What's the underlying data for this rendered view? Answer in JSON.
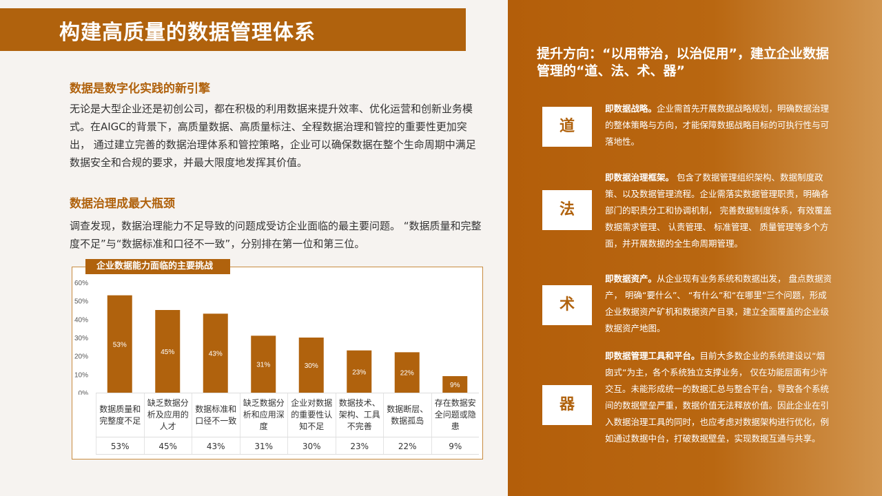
{
  "title": "构建高质量的数据管理体系",
  "section1": {
    "heading": "数据是数字化实践的新引擎",
    "body": "无论是大型企业还是初创公司，都在积极的利用数据来提升效率、优化运营和创新业务模式。在AIGC的背景下，高质量数据、高质量标注、全程数据治理和管控的重要性更加突出， 通过建立完善的数据治理体系和管控策略，企业可以确保数据在整个生命周期中满足数据安全和合规的要求，并最大限度地发挥其价值。"
  },
  "section2": {
    "heading": "数据治理成最大瓶颈",
    "body": "调查发现，数据治理能力不足导致的问题成受访企业面临的最主要问题。  “数据质量和完整度不足”与“数据标准和口径不一致”，分别排在第一位和第三位。"
  },
  "chart_label": "企业数据能力面临的主要挑战",
  "chart_data": {
    "type": "bar",
    "title": "企业数据能力面临的主要挑战",
    "categories": [
      "数据质量和完整度不足",
      "缺乏数据分析及应用的人才",
      "数据标准和口径不一致",
      "缺乏数据分析和应用深度",
      "企业对数据的重要性认知不足",
      "数据技术、架构、工具不完善",
      "数据断层、数据孤岛",
      "存在数据安全问题或隐患"
    ],
    "values": [
      53,
      45,
      43,
      31,
      30,
      23,
      22,
      9
    ],
    "value_labels": [
      "53%",
      "45%",
      "43%",
      "31%",
      "30%",
      "23%",
      "22%",
      "9%"
    ],
    "y_ticks": [
      "0%",
      "10%",
      "20%",
      "30%",
      "40%",
      "50%",
      "60%"
    ],
    "ylim": [
      0,
      60
    ],
    "bar_color": "#b0620d",
    "grid": false,
    "legend": "none"
  },
  "right": {
    "heading": "提升方向：“以用带治，以治促用”，建立企业数据管理的“道、法、术、器”",
    "items": [
      {
        "char": "道",
        "lead": "即数据战略。",
        "text": "企业需首先开展数据战略规划，明确数据治理的整体策略与方向，才能保障数据战略目标的可执行性与可落地性。"
      },
      {
        "char": "法",
        "lead": "即数据治理框架。",
        "text": " 包含了数据管理组织架构、数据制度政策、以及数据管理流程。企业需落实数据管理职责，明确各部门的职责分工和协调机制， 完善数据制度体系，有效覆盖数据需求管理、 认责管理、 标准管理、 质量管理等多个方面，并开展数据的全生命周期管理。"
      },
      {
        "char": "术",
        "lead": "即数据资产。",
        "text": "从企业现有业务系统和数据出发， 盘点数据资产， 明确“要什么”、 “有什么”和“在哪里”三个问题，形成企业数据资产矿机和数据资产目录，建立全面覆盖的企业级数据资产地图。"
      },
      {
        "char": "器",
        "lead": "即数据管理工具和平台。",
        "text": "目前大多数企业的系统建设以“烟囱式“为主，各个系统独立支撑业务， 仅在功能层面有少许交互。未能形成统一的数据汇总与整合平台，导致各个系统间的数据壁垒严重，数据价值无法释放价值。因此企业在引入数据治理工具的同时，也应考虑对数据架构进行优化，例如通过数据中台，打破数据壁垒，实现数据互通与共享。"
      }
    ]
  },
  "colors": {
    "accent": "#b0620d",
    "panel": "#b35e0a",
    "background": "#f6f3f0"
  }
}
